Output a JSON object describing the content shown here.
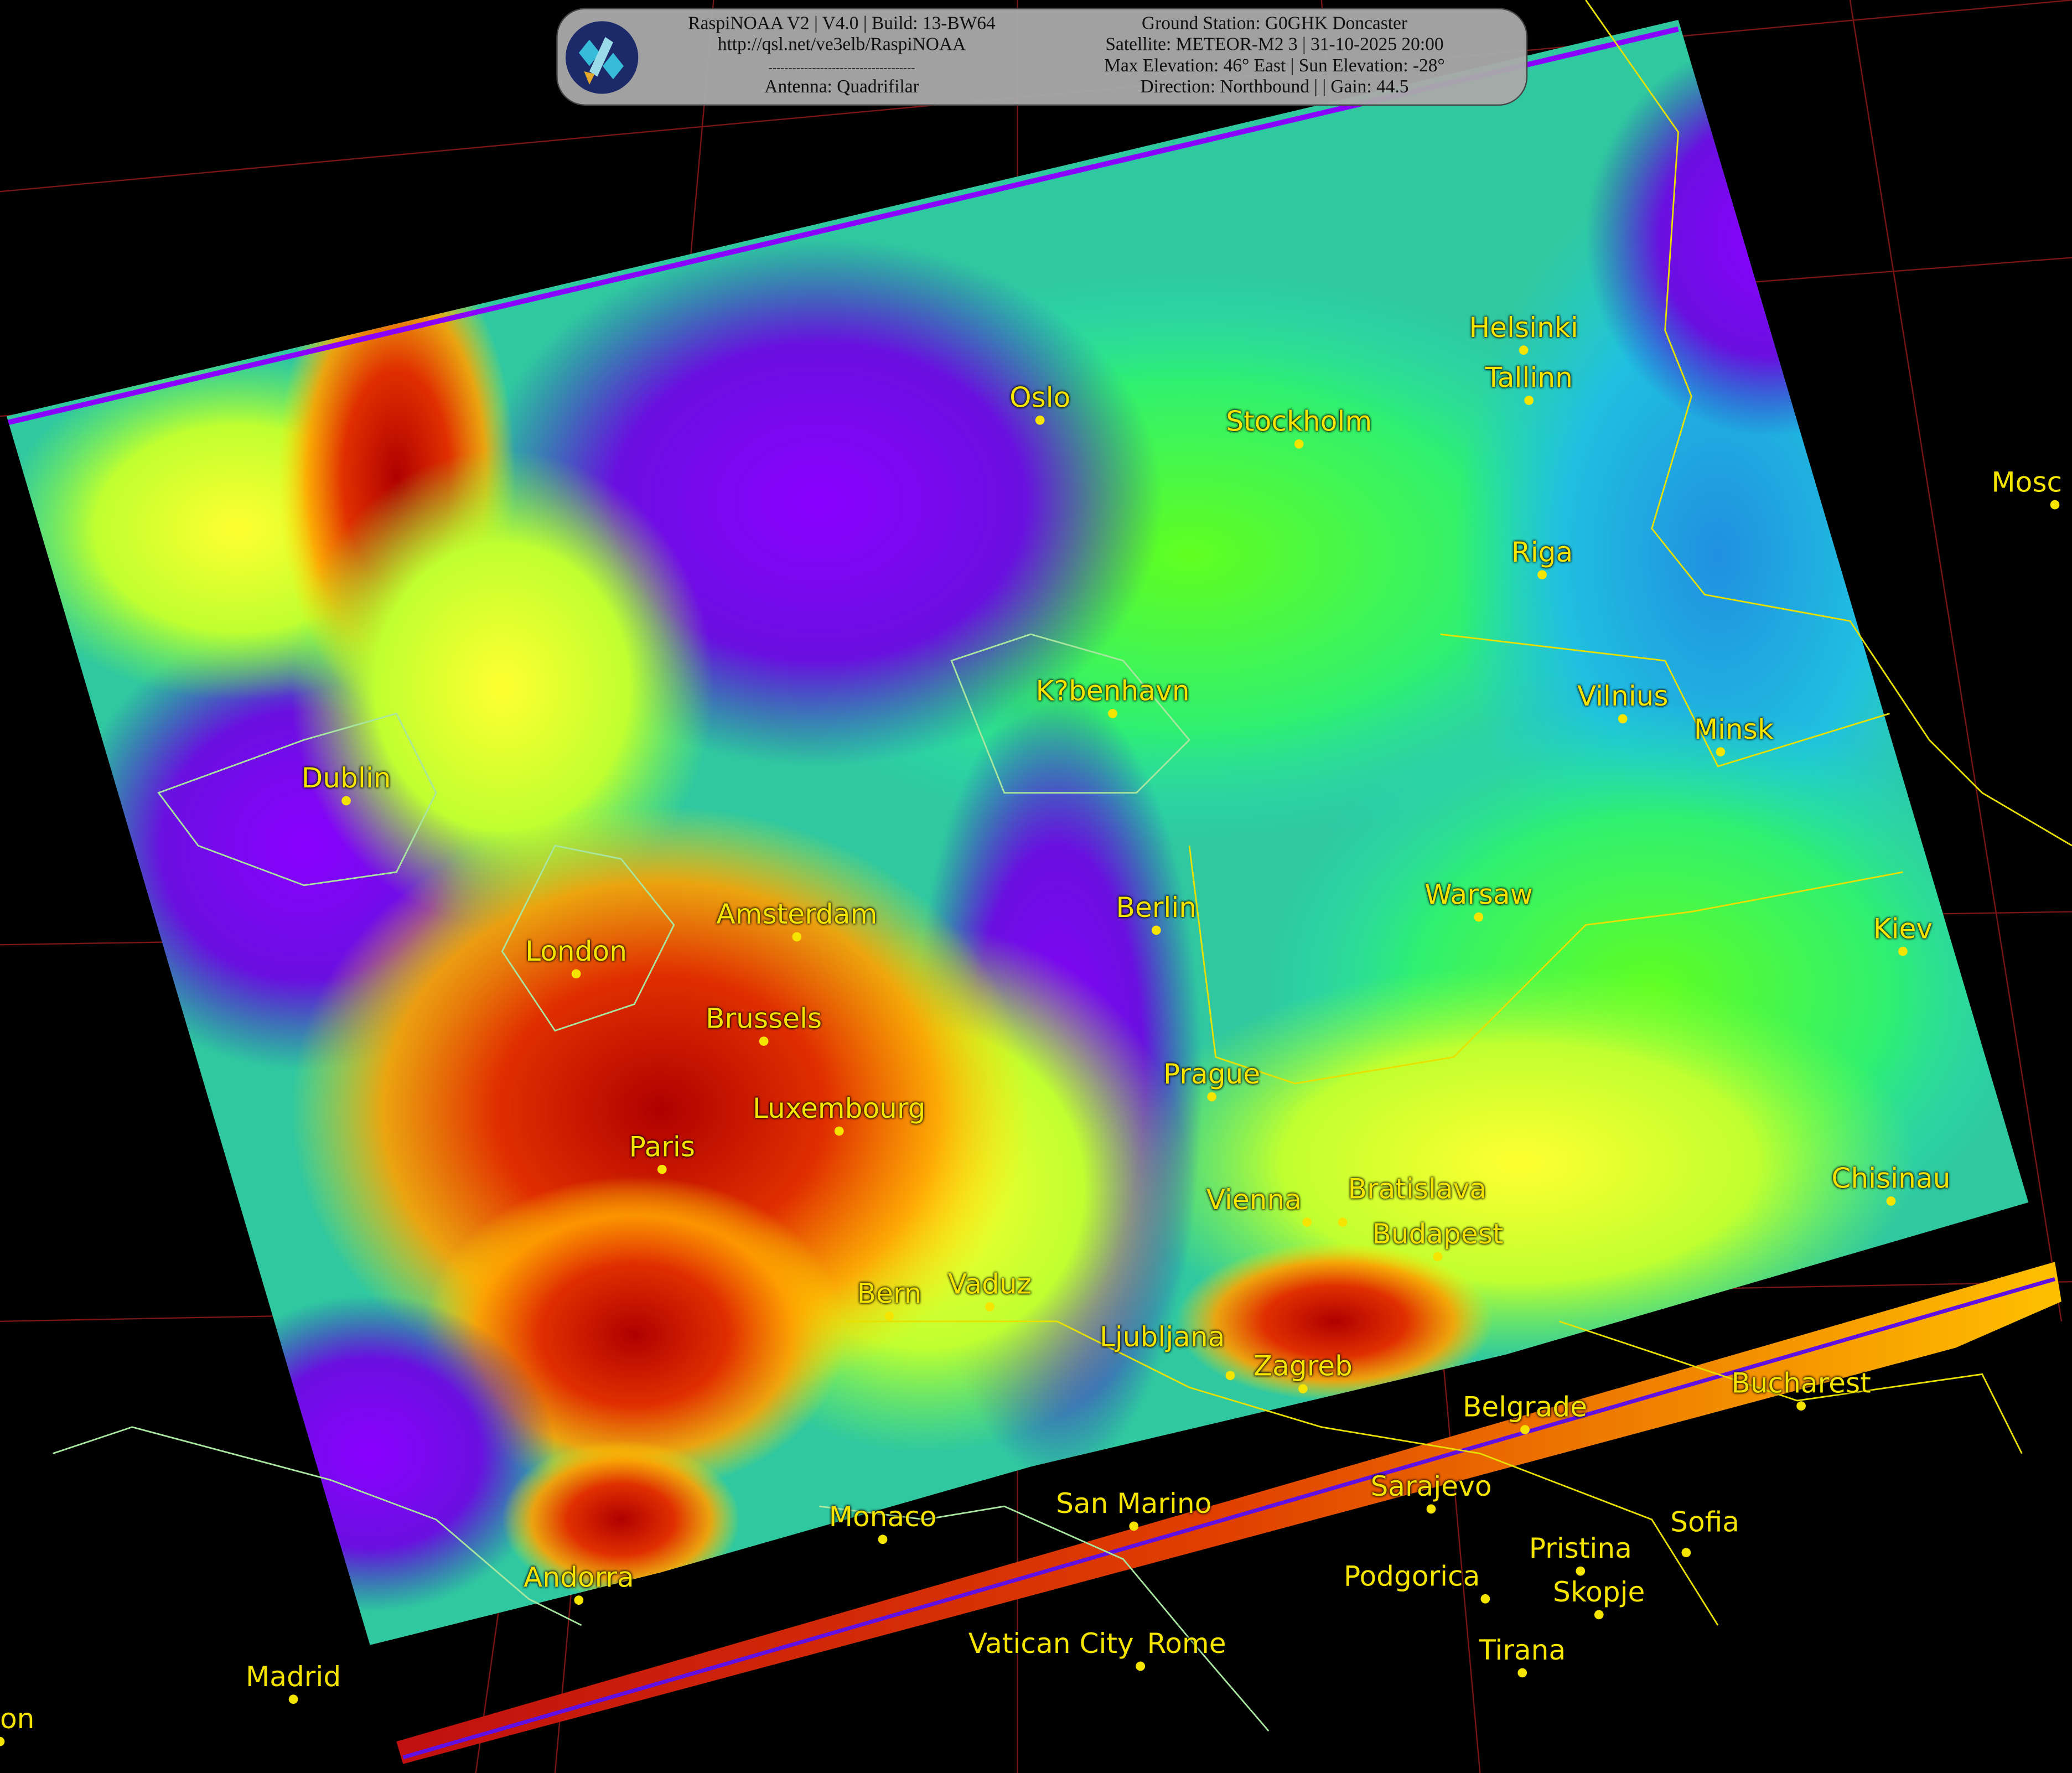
{
  "banner": {
    "left": [
      "RaspiNOAA V2 | V4.0 | Build: 13-BW64",
      "http://qsl.net/ve3elb/RaspiNOAA",
      "-------------------------------------",
      "Antenna: Quadrifilar"
    ],
    "right": [
      "Ground Station: G0GHK Doncaster",
      "Satellite: METEOR-M2 3 | 31-10-2025 20:00",
      "Max Elevation: 46° East | Sun Elevation: -28°",
      "Direction: Northbound | | Gain: 44.5"
    ]
  },
  "cities": [
    "Mosc",
    "Helsinki",
    "Tallinn",
    "Oslo",
    "Stockholm",
    "Riga",
    "K?benhavn",
    "Vilnius",
    "Minsk",
    "Dublin",
    "Amsterdam",
    "Berlin",
    "Warsaw",
    "Kiev",
    "London",
    "Brussels",
    "Prague",
    "Luxembourg",
    "Paris",
    "Chisinau",
    "Vienna",
    "Bratislava",
    "Budapest",
    "Bern",
    "Vaduz",
    "Ljubljana",
    "Zagreb",
    "Belgrade",
    "Bucharest",
    "Sarajevo",
    "Monaco",
    "San Marino",
    "Sofia",
    "Pristina",
    "Podgorica",
    "Skopje",
    "Andorra",
    "Madrid",
    "Tirana",
    "Vatican City",
    "Rome",
    "on"
  ],
  "colors": {
    "label": "#f5e400",
    "coast": "#a8e6a0",
    "border": "#e8e000",
    "grid": "#8a1a1a",
    "background": "#000000"
  }
}
